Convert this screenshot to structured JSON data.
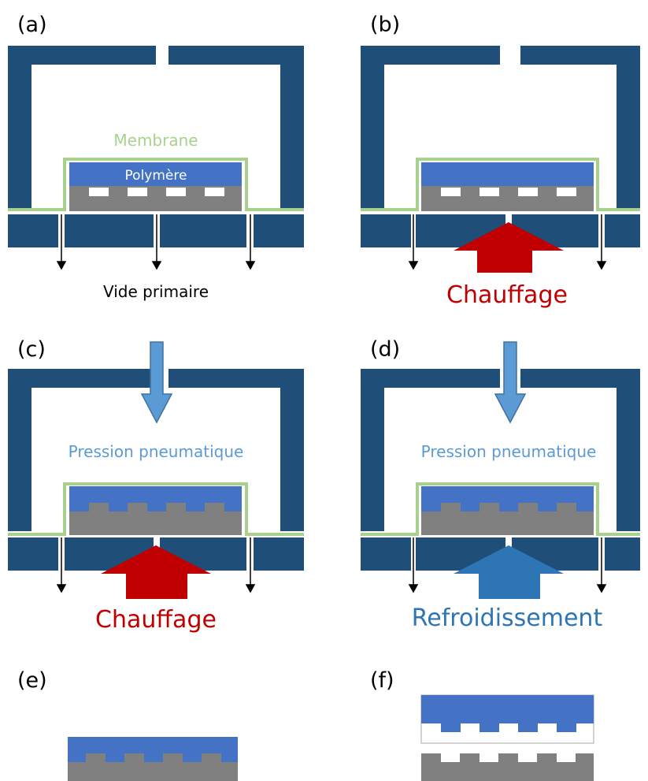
{
  "panels": [
    {
      "id": "a",
      "label": "(a)",
      "bottom_text": "Vide primaire",
      "membrane_label": "Membrane",
      "polymer_label": "Polymère",
      "arrow": "none",
      "top_arrow": false
    },
    {
      "id": "b",
      "label": "(b)",
      "bottom_text": "Chauffage",
      "arrow": "heat",
      "top_arrow": false
    },
    {
      "id": "c",
      "label": "(c)",
      "bottom_text": "Chauffage",
      "pressure_text": "Pression pneumatique",
      "arrow": "heat",
      "top_arrow": true
    },
    {
      "id": "d",
      "label": "(d)",
      "bottom_text": "Refroidissement",
      "pressure_text": "Pression pneumatique",
      "arrow": "cool",
      "top_arrow": true
    },
    {
      "id": "e",
      "label": "(e)"
    },
    {
      "id": "f",
      "label": "(f)"
    }
  ],
  "colors": {
    "chamber": "#1f4e79",
    "membrane": "#a9d18e",
    "polymer": "#4472c4",
    "mold": "#808080",
    "heat": "#c00000",
    "cool": "#2e75b6",
    "pressure": "#5b9bd5",
    "text_black": "#000000"
  }
}
